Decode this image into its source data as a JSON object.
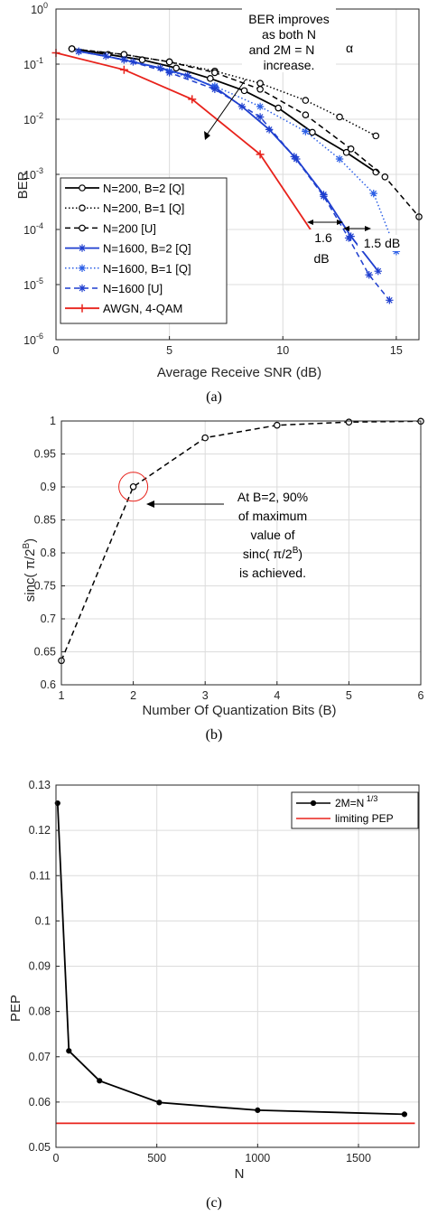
{
  "chart_data": [
    {
      "type": "line",
      "panel_caption": "(a)",
      "xlabel": "Average Receive SNR (dB)",
      "ylabel": "BER",
      "xlim": [
        0,
        16
      ],
      "ylim": [
        1e-06,
        1
      ],
      "yscale": "log",
      "grid": true,
      "legend_position": "bottom-left",
      "x_ticks": [
        "0",
        "5",
        "10",
        "15"
      ],
      "y_ticks": [
        {
          "base": "10",
          "exp": "0"
        },
        {
          "base": "10",
          "exp": "-1"
        },
        {
          "base": "10",
          "exp": "-2"
        },
        {
          "base": "10",
          "exp": "-3"
        },
        {
          "base": "10",
          "exp": "-4"
        },
        {
          "base": "10",
          "exp": "-5"
        },
        {
          "base": "10",
          "exp": "-6"
        }
      ],
      "series": [
        {
          "name": "N=200, B=2 [Q]",
          "color": "#000000",
          "style": "solid",
          "marker": "circle",
          "x": [
            0.7,
            2.3,
            3.8,
            5.3,
            6.8,
            8.3,
            9.8,
            11.3,
            12.8,
            14.1
          ],
          "y": [
            0.19,
            0.15,
            0.12,
            0.085,
            0.055,
            0.033,
            0.016,
            0.0058,
            0.0025,
            0.0011
          ]
        },
        {
          "name": "N=200, B=1 [Q]",
          "color": "#000000",
          "style": "dotted",
          "marker": "circle",
          "x": [
            0.7,
            3.0,
            5.0,
            7.0,
            9.0,
            11.0,
            12.5,
            14.1
          ],
          "y": [
            0.19,
            0.15,
            0.11,
            0.075,
            0.045,
            0.022,
            0.011,
            0.005
          ]
        },
        {
          "name": "N=200 [U]",
          "color": "#000000",
          "style": "dashed",
          "marker": "circle",
          "x": [
            0.7,
            3.0,
            5.0,
            7.0,
            9.0,
            11.0,
            13.0,
            14.5,
            16.0
          ],
          "y": [
            0.19,
            0.15,
            0.11,
            0.07,
            0.035,
            0.012,
            0.0029,
            0.0009,
            0.00017
          ]
        },
        {
          "name": "N=1600, B=2 [Q]",
          "color": "#1f3fcf",
          "style": "solid",
          "marker": "star",
          "x": [
            1.0,
            2.2,
            3.4,
            4.6,
            5.8,
            7.0,
            8.2,
            9.4,
            10.6,
            11.8,
            13.0,
            14.2
          ],
          "y": [
            0.17,
            0.14,
            0.11,
            0.085,
            0.062,
            0.038,
            0.017,
            0.0065,
            0.0019,
            0.00043,
            7.5e-05,
            1.75e-05
          ]
        },
        {
          "name": "N=1600, B=1 [Q]",
          "color": "#2c5fe6",
          "style": "dotted",
          "marker": "star",
          "x": [
            1.0,
            3.0,
            5.0,
            7.0,
            9.0,
            11.0,
            12.5,
            14.0,
            15.0
          ],
          "y": [
            0.17,
            0.12,
            0.075,
            0.04,
            0.017,
            0.006,
            0.0019,
            0.00045,
            4e-05
          ]
        },
        {
          "name": "N=1600 [U]",
          "color": "#1f3fcf",
          "style": "dashed",
          "marker": "star",
          "x": [
            1.0,
            3.0,
            5.0,
            7.0,
            9.0,
            10.5,
            11.8,
            12.9,
            13.8,
            14.7
          ],
          "y": [
            0.17,
            0.12,
            0.07,
            0.035,
            0.011,
            0.0021,
            0.0004,
            7e-05,
            1.5e-05,
            5.2e-06
          ]
        },
        {
          "name": "AWGN, 4-QAM",
          "color": "#e8221b",
          "style": "solid",
          "marker": "plus",
          "x": [
            0.0,
            3.0,
            6.0,
            9.0,
            12.0
          ],
          "y": [
            0.16,
            0.079,
            0.023,
            0.0023,
            3.3e-05
          ]
        }
      ],
      "annotations": [
        {
          "lines": [
            "BER improves",
            "as both N",
            "and 2M = N",
            "increase."
          ],
          "superscript": "α"
        },
        {
          "lines": [
            "1.6",
            "dB"
          ]
        },
        {
          "lines": [
            "1.5 dB"
          ]
        }
      ]
    },
    {
      "type": "line",
      "panel_caption": "(b)",
      "xlabel": "Number Of Quantization Bits (B)",
      "ylabel": "sinc( π/2^B)",
      "ylabel_parts": {
        "main": "sinc( π/2",
        "sup": "B",
        "close": ")"
      },
      "xlim": [
        1,
        6
      ],
      "ylim": [
        0.6,
        1
      ],
      "grid": true,
      "x_ticks": [
        "1",
        "2",
        "3",
        "4",
        "5",
        "6"
      ],
      "y_ticks": [
        "0.6",
        "0.65",
        "0.7",
        "0.75",
        "0.8",
        "0.85",
        "0.9",
        "0.95",
        "1"
      ],
      "series": [
        {
          "color": "#000000",
          "style": "dashed",
          "marker": "circle",
          "x": [
            1,
            2,
            3,
            4,
            5,
            6
          ],
          "y": [
            0.6366,
            0.9003,
            0.9745,
            0.9936,
            0.9984,
            0.9996
          ]
        }
      ],
      "annotation": {
        "lines": [
          "At B=2, 90%",
          "of maximum",
          "value of"
        ],
        "sinc_line": {
          "main": "sinc( π/2",
          "sup": "B",
          "close": ")"
        },
        "last_line": "is achieved.",
        "highlight_x": 2,
        "highlight_y": 0.9003
      }
    },
    {
      "type": "line",
      "panel_caption": "(c)",
      "xlabel": "N",
      "ylabel": "PEP",
      "xlim": [
        0,
        1800
      ],
      "ylim": [
        0.05,
        0.13
      ],
      "grid": true,
      "legend_position": "top-right",
      "x_ticks": [
        "0",
        "500",
        "1000",
        "1500"
      ],
      "y_ticks": [
        "0.05",
        "0.06",
        "0.07",
        "0.08",
        "0.09",
        "0.1",
        "0.11",
        "0.12",
        "0.13"
      ],
      "series": [
        {
          "name": "2M=N",
          "name_sup": "1/3",
          "color": "#000000",
          "style": "solid",
          "marker": "dot",
          "x": [
            8,
            64,
            216,
            512,
            1000,
            1728
          ],
          "y": [
            0.126,
            0.0713,
            0.0647,
            0.0599,
            0.0582,
            0.0573
          ]
        },
        {
          "name": "limiting PEP",
          "color": "#e8221b",
          "style": "solid",
          "marker": "none",
          "x": [
            0,
            1780
          ],
          "y": [
            0.0553,
            0.0553
          ]
        }
      ]
    }
  ]
}
